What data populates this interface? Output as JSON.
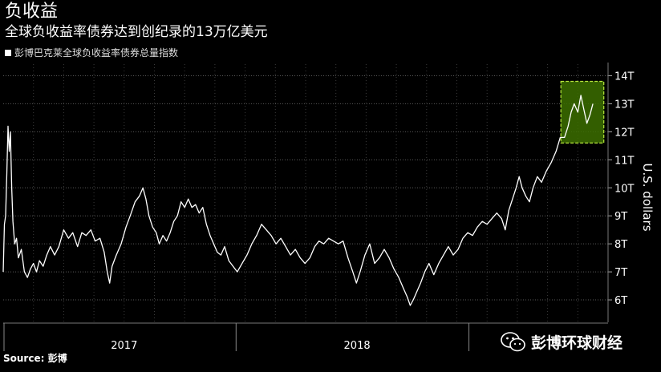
{
  "header": {
    "title": "负收益",
    "subtitle": "全球负收益率债券达到创纪录的13万亿美元"
  },
  "legend": {
    "label": "彭博巴克莱全球负收益率债券总量指数"
  },
  "source": "Source: 彭博",
  "watermark": {
    "text": "彭博环球财经",
    "icon": "wechat-icon"
  },
  "colors": {
    "background": "#000000",
    "line": "#ffffff",
    "highlight_fill": "#3c6e00",
    "highlight_border": "#b6e63c"
  },
  "chart_data": {
    "type": "line",
    "title": "",
    "xlabel": "",
    "ylabel": "U.S. dollars",
    "x_ticks": [
      "2017",
      "2018"
    ],
    "y_ticks": [
      "6T",
      "7T",
      "8T",
      "9T",
      "10T",
      "11T",
      "12T",
      "13T",
      "14T"
    ],
    "ylim": [
      5.2,
      14.3
    ],
    "grid": true,
    "legend_position": "top-left",
    "x_unit": "fraction of period from 2016-07 to 2019-06",
    "series": [
      {
        "values": [
          [
            0.0,
            7.0
          ],
          [
            0.002,
            8.7
          ],
          [
            0.004,
            9.0
          ],
          [
            0.006,
            10.5
          ],
          [
            0.008,
            12.2
          ],
          [
            0.01,
            11.3
          ],
          [
            0.012,
            12.0
          ],
          [
            0.014,
            10.0
          ],
          [
            0.016,
            8.8
          ],
          [
            0.019,
            8.0
          ],
          [
            0.022,
            8.2
          ],
          [
            0.025,
            7.5
          ],
          [
            0.03,
            7.8
          ],
          [
            0.035,
            7.0
          ],
          [
            0.04,
            6.8
          ],
          [
            0.045,
            7.1
          ],
          [
            0.05,
            7.3
          ],
          [
            0.055,
            7.0
          ],
          [
            0.06,
            7.4
          ],
          [
            0.066,
            7.2
          ],
          [
            0.072,
            7.6
          ],
          [
            0.078,
            7.9
          ],
          [
            0.085,
            7.6
          ],
          [
            0.092,
            7.9
          ],
          [
            0.1,
            8.5
          ],
          [
            0.108,
            8.2
          ],
          [
            0.115,
            8.4
          ],
          [
            0.123,
            7.9
          ],
          [
            0.13,
            8.4
          ],
          [
            0.137,
            8.3
          ],
          [
            0.145,
            8.5
          ],
          [
            0.152,
            8.1
          ],
          [
            0.16,
            8.2
          ],
          [
            0.167,
            7.7
          ],
          [
            0.172,
            7.0
          ],
          [
            0.176,
            6.6
          ],
          [
            0.18,
            7.2
          ],
          [
            0.187,
            7.6
          ],
          [
            0.195,
            8.0
          ],
          [
            0.203,
            8.6
          ],
          [
            0.21,
            9.0
          ],
          [
            0.218,
            9.5
          ],
          [
            0.225,
            9.7
          ],
          [
            0.231,
            10.0
          ],
          [
            0.236,
            9.6
          ],
          [
            0.241,
            9.0
          ],
          [
            0.247,
            8.6
          ],
          [
            0.253,
            8.4
          ],
          [
            0.258,
            8.0
          ],
          [
            0.264,
            8.3
          ],
          [
            0.27,
            8.1
          ],
          [
            0.276,
            8.4
          ],
          [
            0.282,
            8.8
          ],
          [
            0.288,
            9.0
          ],
          [
            0.294,
            9.5
          ],
          [
            0.3,
            9.3
          ],
          [
            0.306,
            9.6
          ],
          [
            0.312,
            9.3
          ],
          [
            0.318,
            9.4
          ],
          [
            0.324,
            9.1
          ],
          [
            0.33,
            9.3
          ],
          [
            0.336,
            8.7
          ],
          [
            0.342,
            8.3
          ],
          [
            0.348,
            8.0
          ],
          [
            0.354,
            7.7
          ],
          [
            0.36,
            7.6
          ],
          [
            0.366,
            7.9
          ],
          [
            0.373,
            7.4
          ],
          [
            0.38,
            7.2
          ],
          [
            0.387,
            7.0
          ],
          [
            0.395,
            7.3
          ],
          [
            0.403,
            7.6
          ],
          [
            0.411,
            8.0
          ],
          [
            0.419,
            8.3
          ],
          [
            0.427,
            8.7
          ],
          [
            0.435,
            8.5
          ],
          [
            0.443,
            8.3
          ],
          [
            0.451,
            8.0
          ],
          [
            0.459,
            8.2
          ],
          [
            0.467,
            7.9
          ],
          [
            0.475,
            7.6
          ],
          [
            0.483,
            7.8
          ],
          [
            0.491,
            7.5
          ],
          [
            0.499,
            7.3
          ],
          [
            0.507,
            7.5
          ],
          [
            0.515,
            7.9
          ],
          [
            0.522,
            8.1
          ],
          [
            0.53,
            8.0
          ],
          [
            0.538,
            8.2
          ],
          [
            0.546,
            8.1
          ],
          [
            0.554,
            8.0
          ],
          [
            0.562,
            8.1
          ],
          [
            0.57,
            7.5
          ],
          [
            0.578,
            7.0
          ],
          [
            0.584,
            6.6
          ],
          [
            0.59,
            7.0
          ],
          [
            0.598,
            7.6
          ],
          [
            0.606,
            8.0
          ],
          [
            0.614,
            7.3
          ],
          [
            0.622,
            7.5
          ],
          [
            0.63,
            7.8
          ],
          [
            0.638,
            7.5
          ],
          [
            0.646,
            7.1
          ],
          [
            0.654,
            6.8
          ],
          [
            0.662,
            6.4
          ],
          [
            0.668,
            6.1
          ],
          [
            0.673,
            5.8
          ],
          [
            0.678,
            6.0
          ],
          [
            0.684,
            6.3
          ],
          [
            0.69,
            6.6
          ],
          [
            0.697,
            7.0
          ],
          [
            0.704,
            7.3
          ],
          [
            0.712,
            6.9
          ],
          [
            0.72,
            7.3
          ],
          [
            0.728,
            7.6
          ],
          [
            0.736,
            7.9
          ],
          [
            0.744,
            7.6
          ],
          [
            0.752,
            7.8
          ],
          [
            0.76,
            8.2
          ],
          [
            0.768,
            8.4
          ],
          [
            0.776,
            8.3
          ],
          [
            0.784,
            8.6
          ],
          [
            0.792,
            8.8
          ],
          [
            0.8,
            8.7
          ],
          [
            0.808,
            8.9
          ],
          [
            0.816,
            9.1
          ],
          [
            0.824,
            8.9
          ],
          [
            0.83,
            8.5
          ],
          [
            0.836,
            9.2
          ],
          [
            0.842,
            9.6
          ],
          [
            0.848,
            10.0
          ],
          [
            0.853,
            10.4
          ],
          [
            0.858,
            10.0
          ],
          [
            0.864,
            9.7
          ],
          [
            0.87,
            9.5
          ],
          [
            0.876,
            10.0
          ],
          [
            0.883,
            10.4
          ],
          [
            0.89,
            10.2
          ],
          [
            0.898,
            10.6
          ],
          [
            0.906,
            10.9
          ],
          [
            0.914,
            11.3
          ],
          [
            0.921,
            11.8
          ],
          [
            0.928,
            11.8
          ],
          [
            0.934,
            12.2
          ],
          [
            0.939,
            12.7
          ],
          [
            0.944,
            13.0
          ],
          [
            0.95,
            12.7
          ],
          [
            0.955,
            13.3
          ],
          [
            0.96,
            12.8
          ],
          [
            0.965,
            12.3
          ],
          [
            0.97,
            12.6
          ],
          [
            0.975,
            13.0
          ]
        ]
      }
    ],
    "annotations": [
      {
        "type": "highlight-box",
        "x_start": 0.922,
        "x_end": 0.993,
        "y_start": 11.6,
        "y_end": 13.8
      }
    ]
  }
}
